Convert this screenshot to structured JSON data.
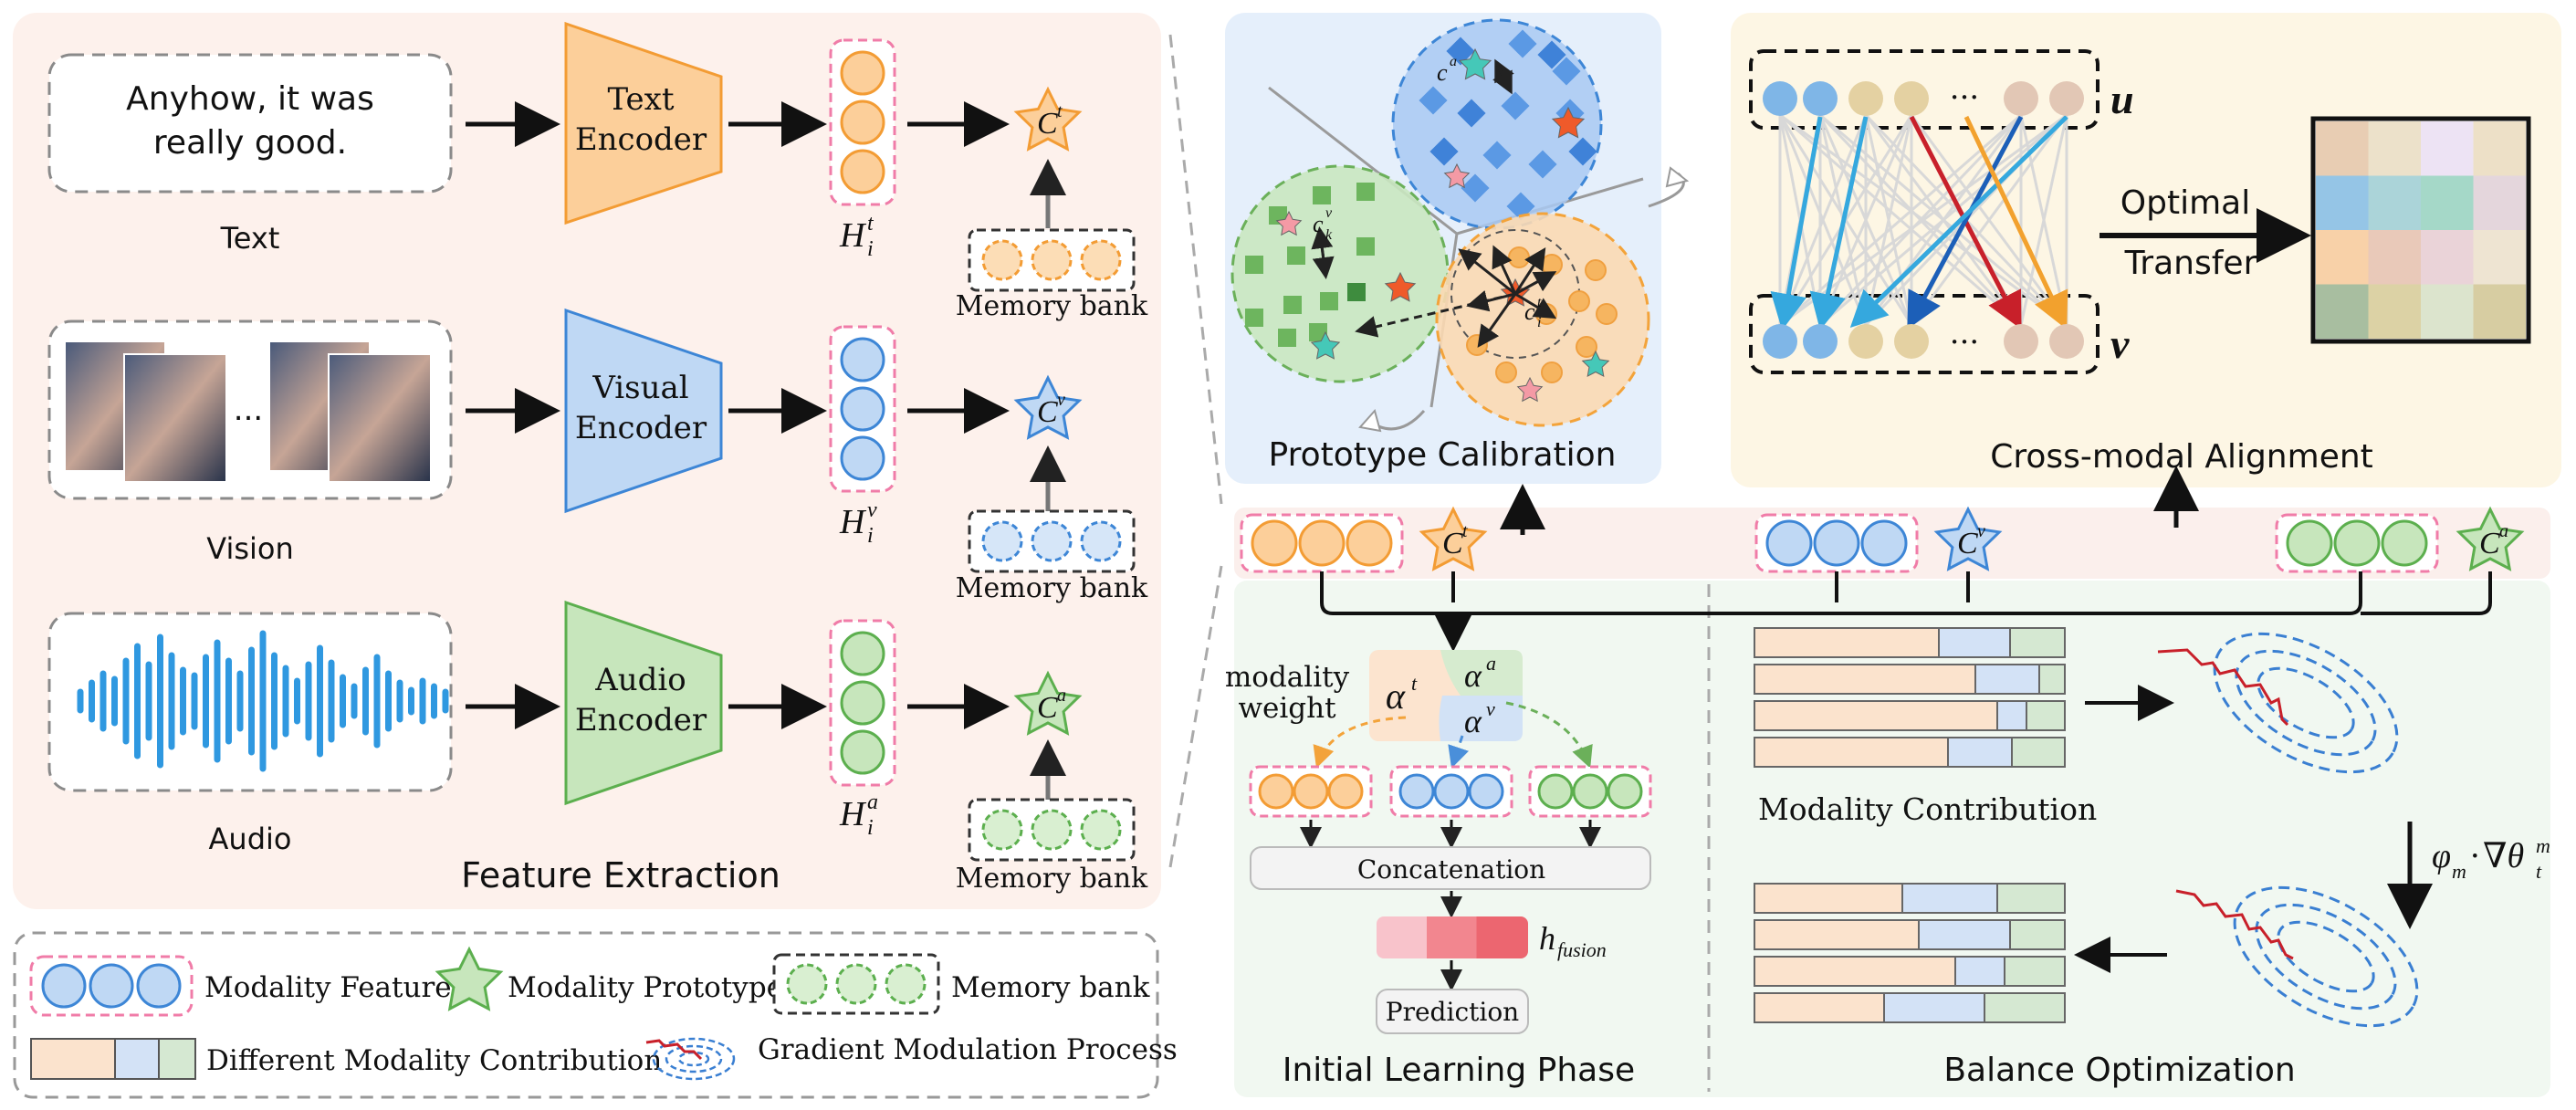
{
  "feature_extraction": {
    "title": "Feature Extraction",
    "text_sample": [
      "Anyhow,  it was",
      "really good."
    ],
    "text_label": "Text",
    "vision_label": "Vision",
    "audio_label": "Audio",
    "ellipsis": "...",
    "text_encoder": [
      "Text",
      "Encoder"
    ],
    "visual_encoder": [
      "Visual",
      "Encoder"
    ],
    "audio_encoder": [
      "Audio",
      "Encoder"
    ],
    "memory_bank": "Memory bank",
    "H": "H",
    "sub_i": "i",
    "sup_t": "t",
    "sup_v": "v",
    "sup_a": "a",
    "C": "C"
  },
  "prototype_calibration": {
    "title": "Prototype Calibration",
    "c": "c",
    "sup_a": "a",
    "sup_v": "v",
    "sup_t": "t",
    "sub_k": "k",
    "sub_i": "i"
  },
  "cross_modal_alignment": {
    "title": "Cross-modal Alignment",
    "u": "u",
    "v": "v",
    "ellipsis": "···",
    "ot_label": [
      "Optimal",
      "Transfer"
    ]
  },
  "initial_learning": {
    "title": "Initial Learning Phase",
    "modality_weight": [
      "modality",
      "weight"
    ],
    "alpha": "α",
    "sup_t": "t",
    "sup_a": "a",
    "sup_v": "v",
    "concatenation": "Concatenation",
    "h": "h",
    "fusion_sub": "fusion",
    "prediction": "Prediction"
  },
  "balance_optimization": {
    "title": "Balance Optimization",
    "modality_contribution": "Modality Contribution",
    "phi": "φ",
    "sub_m": "m",
    "dot": "·",
    "nabla_theta": "∇θ",
    "sup_m": "m",
    "sub_t": "t"
  },
  "legend": {
    "modality_feature": "Modality Feature",
    "modality_prototype": "Modality Prototype",
    "memory_bank": "Memory bank",
    "different_contribution": "Different Modality Contribution",
    "gradient_modulation": "Gradient Modulation Process"
  },
  "colors": {
    "text_orange": "#F7A23B",
    "text_fill": "#FCCF9A",
    "vision_blue": "#3D86D6",
    "vision_fill": "#BFD8F4",
    "audio_green": "#5CAF4E",
    "audio_fill": "#C7E6BC",
    "pink_dash": "#F07CA8",
    "panel_pink": "#FDF1EC",
    "panel_blue": "#E7F0FB",
    "panel_yellow": "#FDF6E4",
    "panel_green": "#F1F8F1"
  }
}
